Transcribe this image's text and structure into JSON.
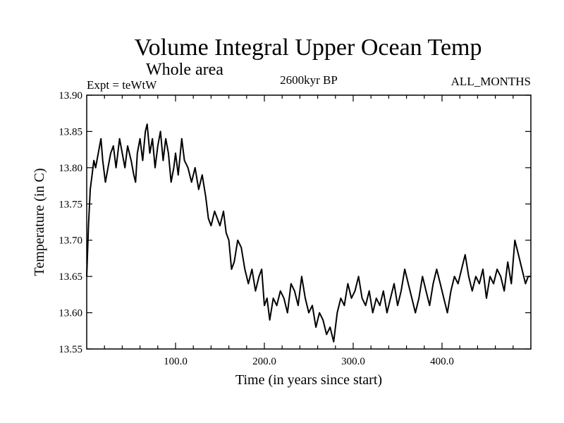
{
  "chart_data": {
    "type": "line",
    "title": "Volume Integral Upper Ocean Temp",
    "subtitle": "Whole area",
    "annotations": {
      "expt": "Expt = teWtW",
      "period": "2600kyr BP",
      "months": "ALL_MONTHS"
    },
    "xlabel": "Time (in years since start)",
    "ylabel": "Temperature (in C)",
    "xlim": [
      0,
      500
    ],
    "ylim": [
      13.55,
      13.9
    ],
    "x_ticks": [
      100,
      200,
      300,
      400
    ],
    "x_tick_labels": [
      "100.0",
      "200.0",
      "300.0",
      "400.0"
    ],
    "y_ticks": [
      13.55,
      13.6,
      13.65,
      13.7,
      13.75,
      13.8,
      13.85,
      13.9
    ],
    "y_tick_labels": [
      "13.55",
      "13.60",
      "13.65",
      "13.70",
      "13.75",
      "13.80",
      "13.85",
      "13.90"
    ],
    "grid": false,
    "series": [
      {
        "name": "Volume Integral Upper Ocean Temp",
        "color": "#000000",
        "x": [
          0,
          2,
          4,
          6,
          8,
          10,
          13,
          16,
          18,
          21,
          24,
          27,
          30,
          33,
          37,
          40,
          43,
          46,
          50,
          53,
          55,
          57,
          60,
          63,
          66,
          68,
          71,
          74,
          77,
          80,
          83,
          86,
          89,
          92,
          95,
          98,
          100,
          103,
          107,
          110,
          114,
          118,
          122,
          126,
          130,
          134,
          137,
          140,
          144,
          147,
          150,
          154,
          157,
          160,
          163,
          166,
          170,
          174,
          178,
          182,
          186,
          190,
          194,
          197,
          200,
          203,
          206,
          210,
          214,
          218,
          222,
          226,
          230,
          234,
          238,
          242,
          246,
          250,
          254,
          258,
          262,
          266,
          270,
          274,
          278,
          282,
          286,
          290,
          294,
          298,
          302,
          306,
          310,
          314,
          318,
          322,
          326,
          330,
          334,
          338,
          342,
          346,
          350,
          354,
          358,
          362,
          366,
          370,
          374,
          378,
          382,
          386,
          390,
          394,
          398,
          402,
          406,
          410,
          414,
          418,
          422,
          426,
          430,
          434,
          438,
          442,
          446,
          450,
          454,
          458,
          462,
          466,
          470,
          474,
          478,
          482,
          486,
          490,
          494,
          497,
          500
        ],
        "values": [
          13.65,
          13.72,
          13.77,
          13.79,
          13.81,
          13.8,
          13.82,
          13.84,
          13.81,
          13.78,
          13.8,
          13.82,
          13.83,
          13.8,
          13.84,
          13.82,
          13.8,
          13.83,
          13.81,
          13.79,
          13.78,
          13.82,
          13.84,
          13.81,
          13.85,
          13.86,
          13.82,
          13.84,
          13.8,
          13.83,
          13.85,
          13.81,
          13.84,
          13.82,
          13.78,
          13.8,
          13.82,
          13.79,
          13.84,
          13.81,
          13.8,
          13.78,
          13.8,
          13.77,
          13.79,
          13.76,
          13.73,
          13.72,
          13.74,
          13.73,
          13.72,
          13.74,
          13.71,
          13.7,
          13.66,
          13.67,
          13.7,
          13.69,
          13.66,
          13.64,
          13.66,
          13.63,
          13.65,
          13.66,
          13.61,
          13.62,
          13.59,
          13.62,
          13.61,
          13.63,
          13.62,
          13.6,
          13.64,
          13.63,
          13.61,
          13.65,
          13.62,
          13.6,
          13.61,
          13.58,
          13.6,
          13.59,
          13.57,
          13.58,
          13.56,
          13.6,
          13.62,
          13.61,
          13.64,
          13.62,
          13.63,
          13.65,
          13.62,
          13.61,
          13.63,
          13.6,
          13.62,
          13.61,
          13.63,
          13.6,
          13.62,
          13.64,
          13.61,
          13.63,
          13.66,
          13.64,
          13.62,
          13.6,
          13.62,
          13.65,
          13.63,
          13.61,
          13.64,
          13.66,
          13.64,
          13.62,
          13.6,
          13.63,
          13.65,
          13.64,
          13.66,
          13.68,
          13.65,
          13.63,
          13.65,
          13.64,
          13.66,
          13.62,
          13.65,
          13.64,
          13.66,
          13.65,
          13.63,
          13.67,
          13.64,
          13.7,
          13.68,
          13.66,
          13.64,
          13.65,
          13.65
        ]
      }
    ]
  }
}
